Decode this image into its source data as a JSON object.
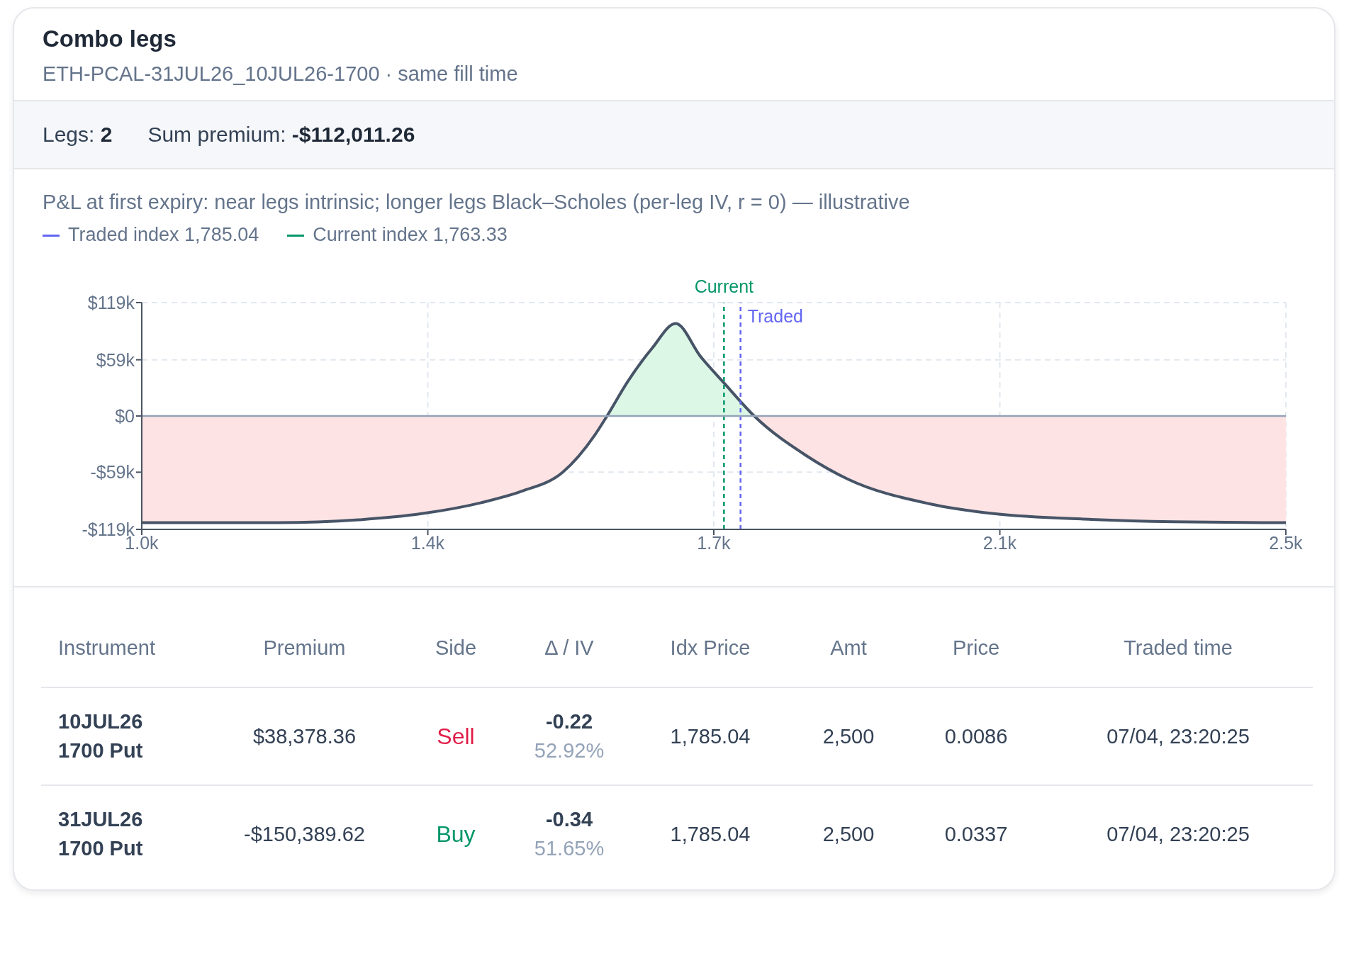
{
  "chart_data": [
    {
      "type": "area",
      "title": "Combo legs",
      "subtitle": "ETH-PCAL-31JUL26_10JUL26-1700 · same fill time",
      "annotations": [
        "Legs: 2",
        "Sum premium: -$112,011.26",
        "P&L at first expiry: near legs intrinsic; longer legs Black–Scholes (per-leg IV, r = 0) — illustrative",
        "Traded index 1,785.04",
        "Current index 1,763.33"
      ],
      "x": [
        1000,
        1178,
        1284,
        1367,
        1445,
        1498,
        1552,
        1594,
        1610,
        1637,
        1669,
        1700,
        1733,
        1763,
        1803,
        1872,
        1925,
        2032,
        2117,
        2245,
        2352,
        2500
      ],
      "series": [
        {
          "color": "#475467",
          "values": [
            -112000,
            -112000,
            -109000,
            -102500,
            -91000,
            -79000,
            -59000,
            -20000,
            0,
            36000,
            71000,
            97000,
            62000,
            35000,
            0,
            -42000,
            -66000,
            -92000,
            -102500,
            -108500,
            -111000,
            -112000
          ]
        }
      ],
      "xlim": [
        1000,
        2500
      ],
      "xticks": [
        {
          "value": 1000,
          "label": "1.0k"
        },
        {
          "value": 1375,
          "label": "1.4k"
        },
        {
          "value": 1750,
          "label": "1.7k"
        },
        {
          "value": 2125,
          "label": "2.1k"
        },
        {
          "value": 2500,
          "label": "2.5k"
        }
      ],
      "ylim": [
        -119000,
        119000
      ],
      "yticks": [
        {
          "value": -119000,
          "label": "-$119k"
        },
        {
          "value": -59000,
          "label": "-$59k"
        },
        {
          "value": 0,
          "label": "$0"
        },
        {
          "value": 59000,
          "label": "$59k"
        },
        {
          "value": 119000,
          "label": "$119k"
        }
      ],
      "ref_lines": [
        {
          "axis": "x",
          "value": 1785.04,
          "label": "Traded",
          "color": "#6366f1",
          "line_style": "dashed"
        },
        {
          "axis": "x",
          "value": 1763.33,
          "label": "Current",
          "color": "#059669",
          "line_style": "dashed"
        },
        {
          "axis": "y",
          "value": 0,
          "color": "#94a3b8",
          "line_style": "solid"
        }
      ],
      "grid": true,
      "legend": "top left",
      "marker": "none",
      "line_style": "solid"
    },
    {
      "type": "other",
      "colors": [
        "#e11d48",
        "#059669"
      ],
      "annotations": [
        "Instrument",
        "Premium",
        "Side",
        "Δ / IV",
        "Idx Price",
        "Amt",
        "Price",
        "Traded time",
        "10JUL26\n1700 Put",
        "$38,378.36",
        "Sell",
        "-0.22\n52.92%",
        "1,785.04",
        "2,500",
        "0.0086",
        "07/04, 23:20:25",
        "31JUL26\n1700 Put",
        "-$150,389.62",
        "Buy",
        "-0.34\n51.65%",
        "1,785.04",
        "2,500",
        "0.0337",
        "07/04, 23:20:25"
      ]
    }
  ]
}
